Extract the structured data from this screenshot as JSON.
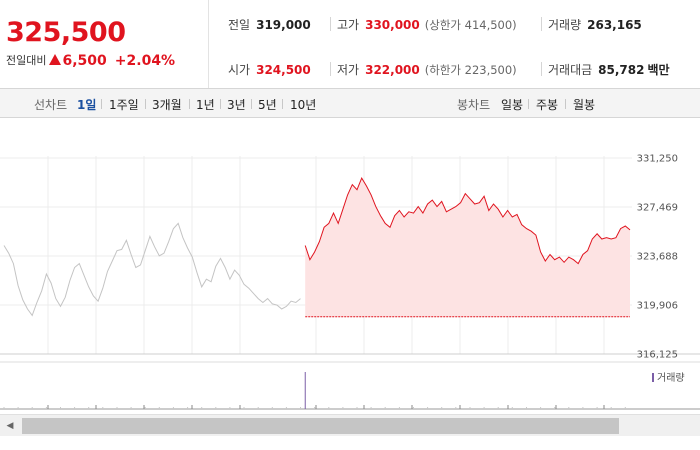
{
  "quote": {
    "current_price": "325,500",
    "change_label": "전일대비",
    "change_value": "6,500",
    "change_rate": "+2.04%"
  },
  "stats": {
    "prev_close": {
      "label": "전일",
      "value": "319,000"
    },
    "high": {
      "label": "고가",
      "value": "330,000",
      "limit_text": "(상한가 414,500)"
    },
    "volume": {
      "label": "거래량",
      "value": "263,165"
    },
    "open": {
      "label": "시가",
      "value": "324,500"
    },
    "low": {
      "label": "저가",
      "value": "322,000",
      "limit_text": "(하한가 223,500)"
    },
    "trade_value": {
      "label": "거래대금",
      "value": "85,782",
      "unit": "백만"
    }
  },
  "tabs": {
    "line_label": "선차트",
    "line_periods": [
      "1일",
      "1주일",
      "3개월",
      "1년",
      "3년",
      "5년",
      "10년"
    ],
    "active_period": "1일",
    "candle_label": "봉차트",
    "candle_periods": [
      "일봉",
      "주봉",
      "월봉"
    ]
  },
  "chart_data": {
    "type": "line",
    "yticks": [
      "331,250",
      "327,469",
      "323,688",
      "319,906",
      "316,125"
    ],
    "ylim": [
      316125,
      331250
    ],
    "baseline": 319000,
    "volume_legend": "거래량",
    "colors": {
      "today": "#e0141f",
      "today_fill": "#fde3e3",
      "prev_day": "#c4c4c4",
      "volume": "#7b5ea7",
      "baseline": "#e0141f"
    },
    "series": [
      {
        "x": [
          0,
          1,
          2,
          3,
          4,
          5,
          6,
          7,
          8,
          9,
          10,
          11,
          12,
          13,
          14,
          15,
          16,
          17,
          18,
          19,
          20,
          21,
          22,
          23,
          24,
          25,
          26,
          27,
          28,
          29,
          30,
          31,
          32,
          33,
          34,
          35,
          36,
          37,
          38,
          39,
          40,
          41,
          42,
          43,
          44,
          45,
          46,
          47,
          48,
          49,
          50,
          51,
          52,
          53,
          54,
          55,
          56,
          57,
          58,
          59,
          60,
          61,
          62,
          63
        ],
        "values": [
          324500,
          323900,
          323100,
          321400,
          320300,
          319600,
          319100,
          320100,
          321000,
          322300,
          321600,
          320400,
          319800,
          320500,
          321800,
          322800,
          323100,
          322200,
          321300,
          320600,
          320200,
          321200,
          322500,
          323300,
          324100,
          324200,
          324900,
          323800,
          322800,
          323000,
          324100,
          325200,
          324400,
          323700,
          323900,
          324800,
          325800,
          326200,
          325100,
          324300,
          323600,
          322400,
          321300,
          321900,
          321700,
          322900,
          323500,
          322800,
          321900,
          322600,
          322200,
          321500,
          321200,
          320800,
          320400,
          320100,
          320400,
          320000,
          319900,
          319600,
          319800,
          320200,
          320100,
          320400
        ]
      },
      {
        "x": [
          64,
          65,
          66,
          67,
          68,
          69,
          70,
          71,
          72,
          73,
          74,
          75,
          76,
          77,
          78,
          79,
          80,
          81,
          82,
          83,
          84,
          85,
          86,
          87,
          88,
          89,
          90,
          91,
          92,
          93,
          94,
          95,
          96,
          97,
          98,
          99,
          100,
          101,
          102,
          103,
          104,
          105,
          106,
          107,
          108,
          109,
          110,
          111,
          112,
          113,
          114,
          115,
          116,
          117,
          118,
          119,
          120,
          121,
          122,
          123,
          124,
          125,
          126,
          127,
          128,
          129,
          130,
          131,
          132,
          133
        ],
        "values": [
          324500,
          323400,
          324000,
          324800,
          325900,
          326200,
          327000,
          326200,
          327300,
          328400,
          329200,
          328800,
          329700,
          329100,
          328400,
          327500,
          326800,
          326200,
          325900,
          326800,
          327200,
          326700,
          327100,
          327000,
          327500,
          327000,
          327700,
          328000,
          327500,
          327900,
          327100,
          327300,
          327500,
          327800,
          328500,
          328100,
          327700,
          327800,
          328300,
          327200,
          327700,
          327300,
          326700,
          327200,
          326700,
          326900,
          326100,
          325800,
          325600,
          325300,
          324000,
          323300,
          323800,
          323400,
          323600,
          323200,
          323600,
          323400,
          323100,
          323800,
          324100,
          325000,
          325400,
          325000,
          325100,
          325000,
          325100,
          325800,
          326000,
          325700
        ]
      }
    ]
  }
}
